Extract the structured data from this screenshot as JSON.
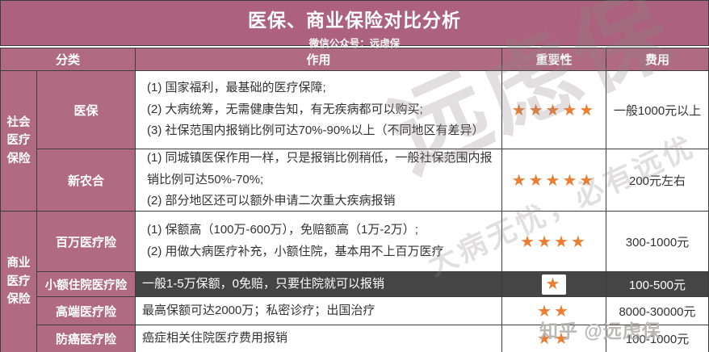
{
  "title": "医保、商业保险对比分析",
  "subtitle": "微信公众号：远虑保",
  "columns": {
    "category": "分类",
    "function": "作用",
    "importance": "重要性",
    "cost": "费用"
  },
  "groups": [
    {
      "label": "社会医疗保险"
    },
    {
      "label": "商业医疗保险"
    }
  ],
  "rows": [
    {
      "name": "医保",
      "functions": [
        "(1) 国家福利，最基础的医疗保障;",
        "(2) 大病统筹，无需健康告知，有无疾病都可以购买;",
        "(3) 社保范围内报销比例可达70%-90%以上（不同地区有差异）"
      ],
      "stars": 5,
      "cost": "一般1000元以上",
      "highlight": false
    },
    {
      "name": "新农合",
      "functions": [
        "(1) 同城镇医保作用一样，只是报销比例稍低，一般社保范围内报销比例可达50%-70%;",
        "(2) 部分地区还可以额外申请二次重大疾病报销"
      ],
      "stars": 5,
      "cost": "200元左右",
      "highlight": false
    },
    {
      "name": "百万医疗险",
      "functions": [
        "(1) 保额高（100万-600万），免赔额高（1万-2万）;",
        "(2) 用做大病医疗补充，小额住院，基本用不上百万医疗"
      ],
      "stars": 4,
      "cost": "300-1000元",
      "highlight": false
    },
    {
      "name": "小额住院医疗险",
      "functions": [
        "一般1-5万保额，0免赔，只要住院就可以报销"
      ],
      "stars": 1,
      "cost": "100-500元",
      "highlight": true
    },
    {
      "name": "高端医疗险",
      "functions": [
        "最高保额可达2000万；私密诊疗；出国治疗"
      ],
      "stars": 2,
      "cost": "8000-30000元",
      "highlight": false
    },
    {
      "name": "防癌医疗险",
      "functions": [
        "癌症相关住院医疗费用报销"
      ],
      "stars": 2,
      "cost": "100-1000元",
      "highlight": false
    }
  ],
  "watermarks": {
    "brand_large": "远虑保",
    "tagline": "大病无忧，必有远优",
    "credit": "知乎 @远虑保"
  },
  "colors": {
    "mauve_title": "#ac627c",
    "mauve_cell": "#b06a81",
    "dark_row": "#454545",
    "star_orange": "#ed7d31",
    "border": "#3c3c3c"
  }
}
